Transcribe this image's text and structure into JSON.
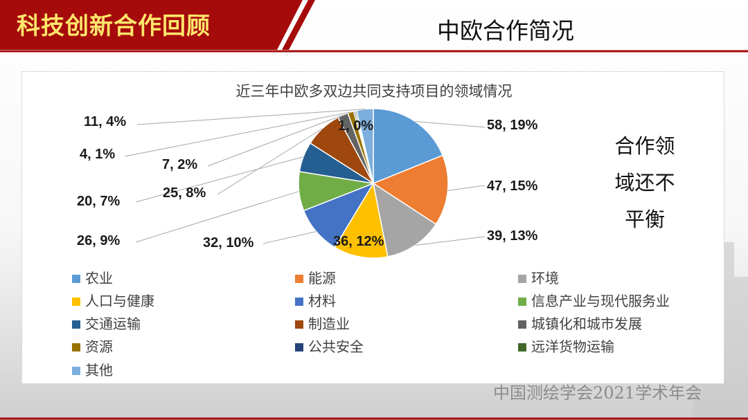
{
  "header": {
    "title": "科技创新合作回顾"
  },
  "slide": {
    "subtitle": "中欧合作简况"
  },
  "note": {
    "lines": [
      "合作领",
      "域还不",
      "平衡"
    ]
  },
  "footer": {
    "text": "中国测绘学会2021学术年会"
  },
  "colors": {
    "header_red": "#a50b0b",
    "header_text": "#ffe66b"
  },
  "chart_data": {
    "type": "pie",
    "title": "近三年中欧多双边共同支持项目的领域情况",
    "legend_position": "bottom",
    "slices": [
      {
        "name": "农业",
        "value": 58,
        "percent": "19%",
        "label": "58, 19%",
        "color": "#5b9bd5"
      },
      {
        "name": "能源",
        "value": 47,
        "percent": "15%",
        "label": "47, 15%",
        "color": "#ed7d31"
      },
      {
        "name": "环境",
        "value": 39,
        "percent": "13%",
        "label": "39, 13%",
        "color": "#a5a5a5"
      },
      {
        "name": "人口与健康",
        "value": 36,
        "percent": "12%",
        "label": "36, 12%",
        "color": "#ffc000"
      },
      {
        "name": "材料",
        "value": 32,
        "percent": "10%",
        "label": "32, 10%",
        "color": "#4472c4"
      },
      {
        "name": "信息产业与现代服务业",
        "value": 26,
        "percent": "9%",
        "label": "26, 9%",
        "color": "#70ad47"
      },
      {
        "name": "交通运输",
        "value": 20,
        "percent": "7%",
        "label": "20, 7%",
        "color": "#255e91"
      },
      {
        "name": "制造业",
        "value": 25,
        "percent": "8%",
        "label": "25, 8%",
        "color": "#9e480e"
      },
      {
        "name": "城镇化和城市发展",
        "value": 7,
        "percent": "2%",
        "label": "7, 2%",
        "color": "#636363"
      },
      {
        "name": "资源",
        "value": 4,
        "percent": "1%",
        "label": "4, 1%",
        "color": "#997300"
      },
      {
        "name": "公共安全",
        "value": 1,
        "percent": "0%",
        "label": "1, 0%",
        "color": "#264478"
      },
      {
        "name": "远洋货物运输",
        "value": 1,
        "percent": "0%",
        "label": "",
        "color": "#43682b"
      },
      {
        "name": "其他",
        "value": 11,
        "percent": "4%",
        "label": "11, 4%",
        "color": "#7cafdd"
      }
    ]
  }
}
